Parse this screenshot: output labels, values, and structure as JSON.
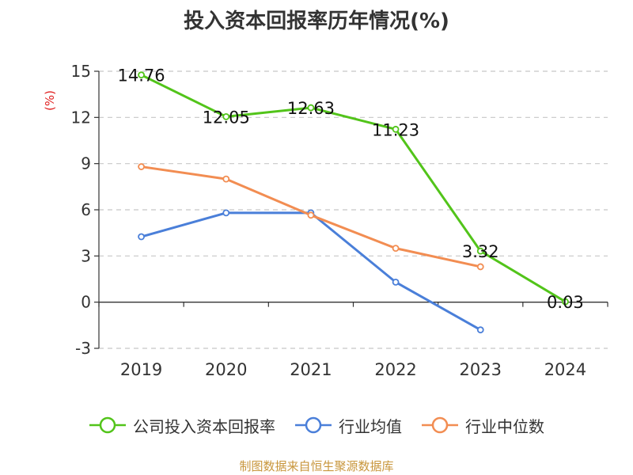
{
  "chart_data": {
    "type": "line",
    "title": "投入资本回报率历年情况(%)",
    "ylabel": "(%)",
    "categories": [
      "2019",
      "2020",
      "2021",
      "2022",
      "2023",
      "2024"
    ],
    "ylim": [
      -3,
      15
    ],
    "yticks": [
      15,
      12,
      9,
      6,
      3,
      0,
      -3
    ],
    "ytick_labels": [
      "15",
      "12",
      "9",
      "6",
      "3",
      "0",
      "-3"
    ],
    "grid": true,
    "legend_position": "bottom",
    "series": [
      {
        "name": "公司投入资本回报率",
        "color": "#52c41a",
        "values": [
          14.76,
          12.05,
          12.63,
          11.23,
          3.32,
          0.03
        ],
        "labels": [
          "14.76",
          "12.05",
          "12.63",
          "11.23",
          "3.32",
          "0.03"
        ]
      },
      {
        "name": "行业均值",
        "color": "#4a7fd9",
        "values": [
          4.25,
          5.8,
          5.8,
          1.3,
          -1.8,
          null
        ]
      },
      {
        "name": "行业中位数",
        "color": "#f28d52",
        "values": [
          8.8,
          8.0,
          5.65,
          3.5,
          2.3,
          null
        ]
      }
    ]
  },
  "source": "制图数据来自恒生聚源数据库"
}
